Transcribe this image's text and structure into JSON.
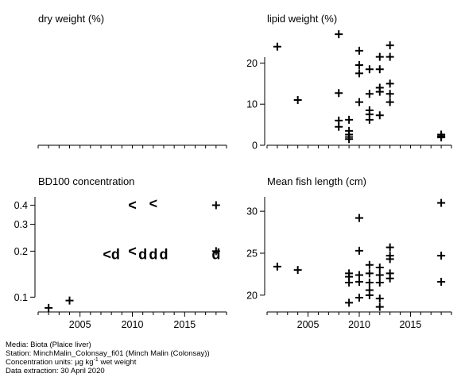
{
  "chart_data": [
    {
      "type": "scatter",
      "title": "dry weight (%)",
      "xlim": [
        2001,
        2019
      ],
      "ylim": null,
      "x_ticks": [],
      "y_ticks": [],
      "points": []
    },
    {
      "type": "scatter",
      "title": "lipid weight (%)",
      "xlim": [
        2001,
        2019
      ],
      "ylim": [
        0,
        28
      ],
      "x_ticks": [],
      "y_ticks": [
        0,
        10,
        20
      ],
      "points": [
        {
          "x": 2002,
          "y": 24,
          "m": "+"
        },
        {
          "x": 2004,
          "y": 11,
          "m": "+"
        },
        {
          "x": 2008,
          "y": 27,
          "m": "+"
        },
        {
          "x": 2008,
          "y": 12.7,
          "m": "+"
        },
        {
          "x": 2008,
          "y": 6,
          "m": "+"
        },
        {
          "x": 2008,
          "y": 4.5,
          "m": "+"
        },
        {
          "x": 2009,
          "y": 6.2,
          "m": "+"
        },
        {
          "x": 2009,
          "y": 3.5,
          "m": "+"
        },
        {
          "x": 2009,
          "y": 2.6,
          "m": "+"
        },
        {
          "x": 2009,
          "y": 2.0,
          "m": "+"
        },
        {
          "x": 2009,
          "y": 1.5,
          "m": "+"
        },
        {
          "x": 2010,
          "y": 23,
          "m": "+"
        },
        {
          "x": 2010,
          "y": 19.5,
          "m": "+"
        },
        {
          "x": 2010,
          "y": 17.5,
          "m": "+"
        },
        {
          "x": 2010,
          "y": 10.5,
          "m": "+"
        },
        {
          "x": 2011,
          "y": 18.5,
          "m": "+"
        },
        {
          "x": 2011,
          "y": 12.5,
          "m": "+"
        },
        {
          "x": 2011,
          "y": 8.5,
          "m": "+"
        },
        {
          "x": 2011,
          "y": 7.5,
          "m": "+"
        },
        {
          "x": 2011,
          "y": 6.2,
          "m": "+"
        },
        {
          "x": 2012,
          "y": 21.5,
          "m": "+"
        },
        {
          "x": 2012,
          "y": 18.5,
          "m": "+"
        },
        {
          "x": 2012,
          "y": 14,
          "m": "+"
        },
        {
          "x": 2012,
          "y": 13,
          "m": "+"
        },
        {
          "x": 2012,
          "y": 7.3,
          "m": "+"
        },
        {
          "x": 2013,
          "y": 24.3,
          "m": "+"
        },
        {
          "x": 2013,
          "y": 21.5,
          "m": "+"
        },
        {
          "x": 2013,
          "y": 15,
          "m": "+"
        },
        {
          "x": 2013,
          "y": 12.5,
          "m": "+"
        },
        {
          "x": 2013,
          "y": 10.5,
          "m": "+"
        },
        {
          "x": 2018,
          "y": 2.6,
          "m": "+"
        },
        {
          "x": 2018,
          "y": 2.2,
          "m": "+"
        },
        {
          "x": 2018,
          "y": 1.9,
          "m": "+"
        }
      ]
    },
    {
      "type": "scatter",
      "title": "BD100 concentration",
      "scale": "log",
      "xlim": [
        2001,
        2019
      ],
      "ylim": [
        0.08,
        0.47
      ],
      "x_ticks": [
        2005,
        2010,
        2015
      ],
      "y_ticks": [
        0.1,
        0.2,
        0.3,
        0.4
      ],
      "points": [
        {
          "x": 2002,
          "y": 0.085,
          "m": "+"
        },
        {
          "x": 2004,
          "y": 0.095,
          "m": "+"
        },
        {
          "x": 2010,
          "y": 0.4,
          "m": "<"
        },
        {
          "x": 2012,
          "y": 0.41,
          "m": "<"
        },
        {
          "x": 2018,
          "y": 0.4,
          "m": "+"
        },
        {
          "x": 2008,
          "y": 0.19,
          "m": "<d"
        },
        {
          "x": 2010,
          "y": 0.2,
          "m": "<"
        },
        {
          "x": 2011,
          "y": 0.19,
          "m": "d"
        },
        {
          "x": 2012,
          "y": 0.19,
          "m": "d"
        },
        {
          "x": 2013,
          "y": 0.19,
          "m": "d"
        },
        {
          "x": 2018,
          "y": 0.2,
          "m": "+"
        },
        {
          "x": 2018,
          "y": 0.19,
          "m": "d"
        }
      ]
    },
    {
      "type": "scatter",
      "title": "Mean fish length (cm)",
      "xlim": [
        2001,
        2019
      ],
      "ylim": [
        18,
        32
      ],
      "x_ticks": [
        2005,
        2010,
        2015
      ],
      "y_ticks": [
        20,
        25,
        30
      ],
      "points": [
        {
          "x": 2002,
          "y": 23.4,
          "m": "+"
        },
        {
          "x": 2004,
          "y": 23,
          "m": "+"
        },
        {
          "x": 2009,
          "y": 22.6,
          "m": "+"
        },
        {
          "x": 2009,
          "y": 22.2,
          "m": "+"
        },
        {
          "x": 2009,
          "y": 21.5,
          "m": "+"
        },
        {
          "x": 2009,
          "y": 19.1,
          "m": "+"
        },
        {
          "x": 2010,
          "y": 29.2,
          "m": "+"
        },
        {
          "x": 2010,
          "y": 25.3,
          "m": "+"
        },
        {
          "x": 2010,
          "y": 22.4,
          "m": "+"
        },
        {
          "x": 2010,
          "y": 21.6,
          "m": "+"
        },
        {
          "x": 2010,
          "y": 19.7,
          "m": "+"
        },
        {
          "x": 2011,
          "y": 23.6,
          "m": "+"
        },
        {
          "x": 2011,
          "y": 22.6,
          "m": "+"
        },
        {
          "x": 2011,
          "y": 21.5,
          "m": "+"
        },
        {
          "x": 2011,
          "y": 20.6,
          "m": "+"
        },
        {
          "x": 2011,
          "y": 20,
          "m": "+"
        },
        {
          "x": 2012,
          "y": 23.3,
          "m": "+"
        },
        {
          "x": 2012,
          "y": 22.4,
          "m": "+"
        },
        {
          "x": 2012,
          "y": 21.5,
          "m": "+"
        },
        {
          "x": 2012,
          "y": 19.6,
          "m": "+"
        },
        {
          "x": 2012,
          "y": 18.6,
          "m": "+"
        },
        {
          "x": 2013,
          "y": 25.7,
          "m": "+"
        },
        {
          "x": 2013,
          "y": 24.7,
          "m": "+"
        },
        {
          "x": 2013,
          "y": 24.3,
          "m": "+"
        },
        {
          "x": 2013,
          "y": 22.6,
          "m": "+"
        },
        {
          "x": 2013,
          "y": 22,
          "m": "+"
        },
        {
          "x": 2018,
          "y": 31,
          "m": "+"
        },
        {
          "x": 2018,
          "y": 24.7,
          "m": "+"
        },
        {
          "x": 2018,
          "y": 21.6,
          "m": "+"
        }
      ]
    }
  ],
  "footer": {
    "media": "Media: Biota (Plaice liver)",
    "station": "Station: MinchMalin_Colonsay_fi01 (Minch Malin (Colonsay))",
    "units_prefix": "Concentration units:  µg kg",
    "units_exp": "-1",
    "units_suffix": " wet weight",
    "extraction": "Data extraction: 30 April 2020"
  }
}
